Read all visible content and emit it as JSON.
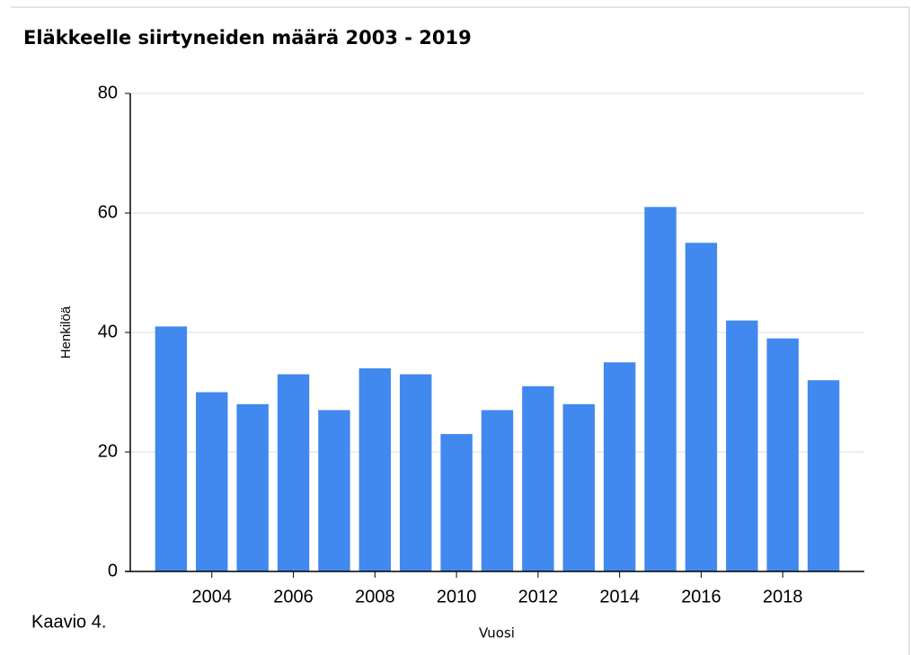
{
  "chart_data": {
    "type": "bar",
    "title": "Eläkkeelle siirtyneiden määrä 2003 - 2019",
    "x_label": "Vuosi",
    "y_label": "Henkilöä",
    "caption": "Kaavio 4.",
    "x": [
      2003,
      2004,
      2005,
      2006,
      2007,
      2008,
      2009,
      2010,
      2011,
      2012,
      2013,
      2014,
      2015,
      2016,
      2017,
      2018,
      2019
    ],
    "values": [
      41,
      30,
      28,
      33,
      27,
      34,
      33,
      23,
      27,
      31,
      28,
      35,
      61,
      55,
      42,
      39,
      32
    ],
    "color": "#4189ee",
    "xlim": [
      2002,
      2020
    ],
    "xticks": [
      2004,
      2006,
      2008,
      2010,
      2012,
      2014,
      2016,
      2018
    ],
    "ylim": [
      0,
      80
    ],
    "yticks": [
      0,
      20,
      40,
      60,
      80
    ],
    "grid": true
  }
}
